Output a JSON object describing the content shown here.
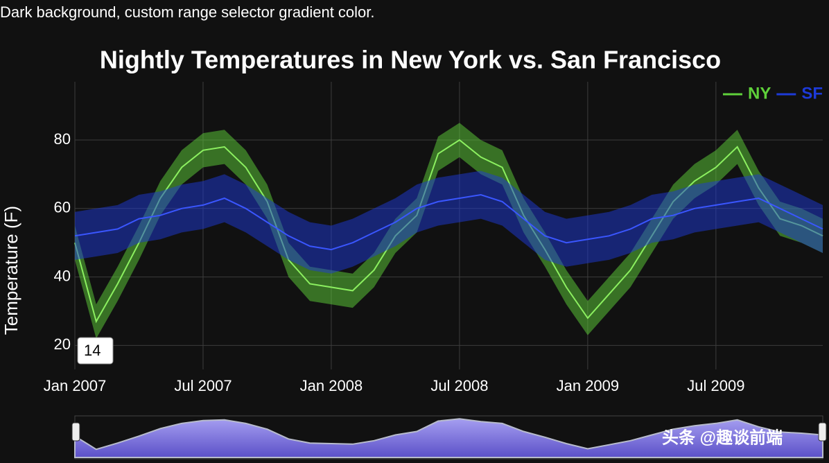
{
  "chart_data": {
    "type": "line",
    "note": "Dark background, custom range selector gradient color.",
    "title": "Nightly Temperatures in New York vs. San Francisco",
    "y_label": "Temperature (F)",
    "rolling_window": 14,
    "watermark": "头条 @趣谈前端",
    "x": [
      "2007-01",
      "2007-02",
      "2007-03",
      "2007-04",
      "2007-05",
      "2007-06",
      "2007-07",
      "2007-08",
      "2007-09",
      "2007-10",
      "2007-11",
      "2007-12",
      "2008-01",
      "2008-02",
      "2008-03",
      "2008-04",
      "2008-05",
      "2008-06",
      "2008-07",
      "2008-08",
      "2008-09",
      "2008-10",
      "2008-11",
      "2008-12",
      "2009-01",
      "2009-02",
      "2009-03",
      "2009-04",
      "2009-05",
      "2009-06",
      "2009-07",
      "2009-08",
      "2009-09",
      "2009-10",
      "2009-11",
      "2009-12"
    ],
    "xlim": [
      "2007-01",
      "2009-12"
    ],
    "xticks": [
      {
        "value": "2007-01",
        "label": "Jan 2007"
      },
      {
        "value": "2007-07",
        "label": "Jul 2007"
      },
      {
        "value": "2008-01",
        "label": "Jan 2008"
      },
      {
        "value": "2008-07",
        "label": "Jul 2008"
      },
      {
        "value": "2009-01",
        "label": "Jan 2009"
      },
      {
        "value": "2009-07",
        "label": "Jul 2009"
      }
    ],
    "ylim": [
      13,
      97
    ],
    "yticks": [
      20,
      40,
      60,
      80
    ],
    "grid": true,
    "legend": "top-right",
    "series": [
      {
        "name": "NY",
        "color": "#5fd13a",
        "values": [
          50,
          27,
          38,
          50,
          63,
          72,
          77,
          78,
          72,
          62,
          45,
          38,
          37,
          36,
          42,
          52,
          58,
          76,
          80,
          75,
          72,
          58,
          48,
          37,
          28,
          35,
          42,
          52,
          62,
          68,
          72,
          78,
          66,
          57,
          55,
          52
        ],
        "lower": [
          45,
          22,
          33,
          45,
          58,
          67,
          72,
          73,
          67,
          57,
          40,
          33,
          32,
          31,
          37,
          47,
          53,
          71,
          75,
          70,
          67,
          53,
          43,
          32,
          23,
          30,
          37,
          47,
          57,
          63,
          67,
          73,
          61,
          52,
          50,
          47
        ],
        "upper": [
          55,
          32,
          43,
          55,
          68,
          77,
          82,
          83,
          77,
          67,
          50,
          43,
          42,
          41,
          47,
          57,
          63,
          81,
          85,
          80,
          77,
          63,
          53,
          42,
          33,
          40,
          47,
          57,
          67,
          73,
          77,
          83,
          71,
          62,
          60,
          57
        ]
      },
      {
        "name": "SF",
        "color": "#1d3ad8",
        "values": [
          52,
          53,
          54,
          57,
          58,
          60,
          61,
          63,
          60,
          56,
          52,
          49,
          48,
          50,
          53,
          56,
          60,
          62,
          63,
          64,
          62,
          57,
          52,
          50,
          51,
          52,
          54,
          57,
          58,
          60,
          61,
          62,
          63,
          60,
          57,
          54
        ],
        "lower": [
          45,
          46,
          47,
          50,
          51,
          53,
          54,
          56,
          53,
          49,
          45,
          42,
          41,
          43,
          46,
          49,
          53,
          55,
          56,
          57,
          55,
          50,
          45,
          43,
          44,
          45,
          47,
          50,
          51,
          53,
          54,
          55,
          56,
          53,
          50,
          47
        ],
        "upper": [
          59,
          60,
          61,
          64,
          65,
          67,
          68,
          70,
          67,
          63,
          59,
          56,
          55,
          57,
          60,
          63,
          67,
          69,
          70,
          71,
          69,
          64,
          59,
          57,
          58,
          59,
          61,
          64,
          65,
          67,
          68,
          69,
          70,
          67,
          64,
          61
        ]
      }
    ]
  }
}
